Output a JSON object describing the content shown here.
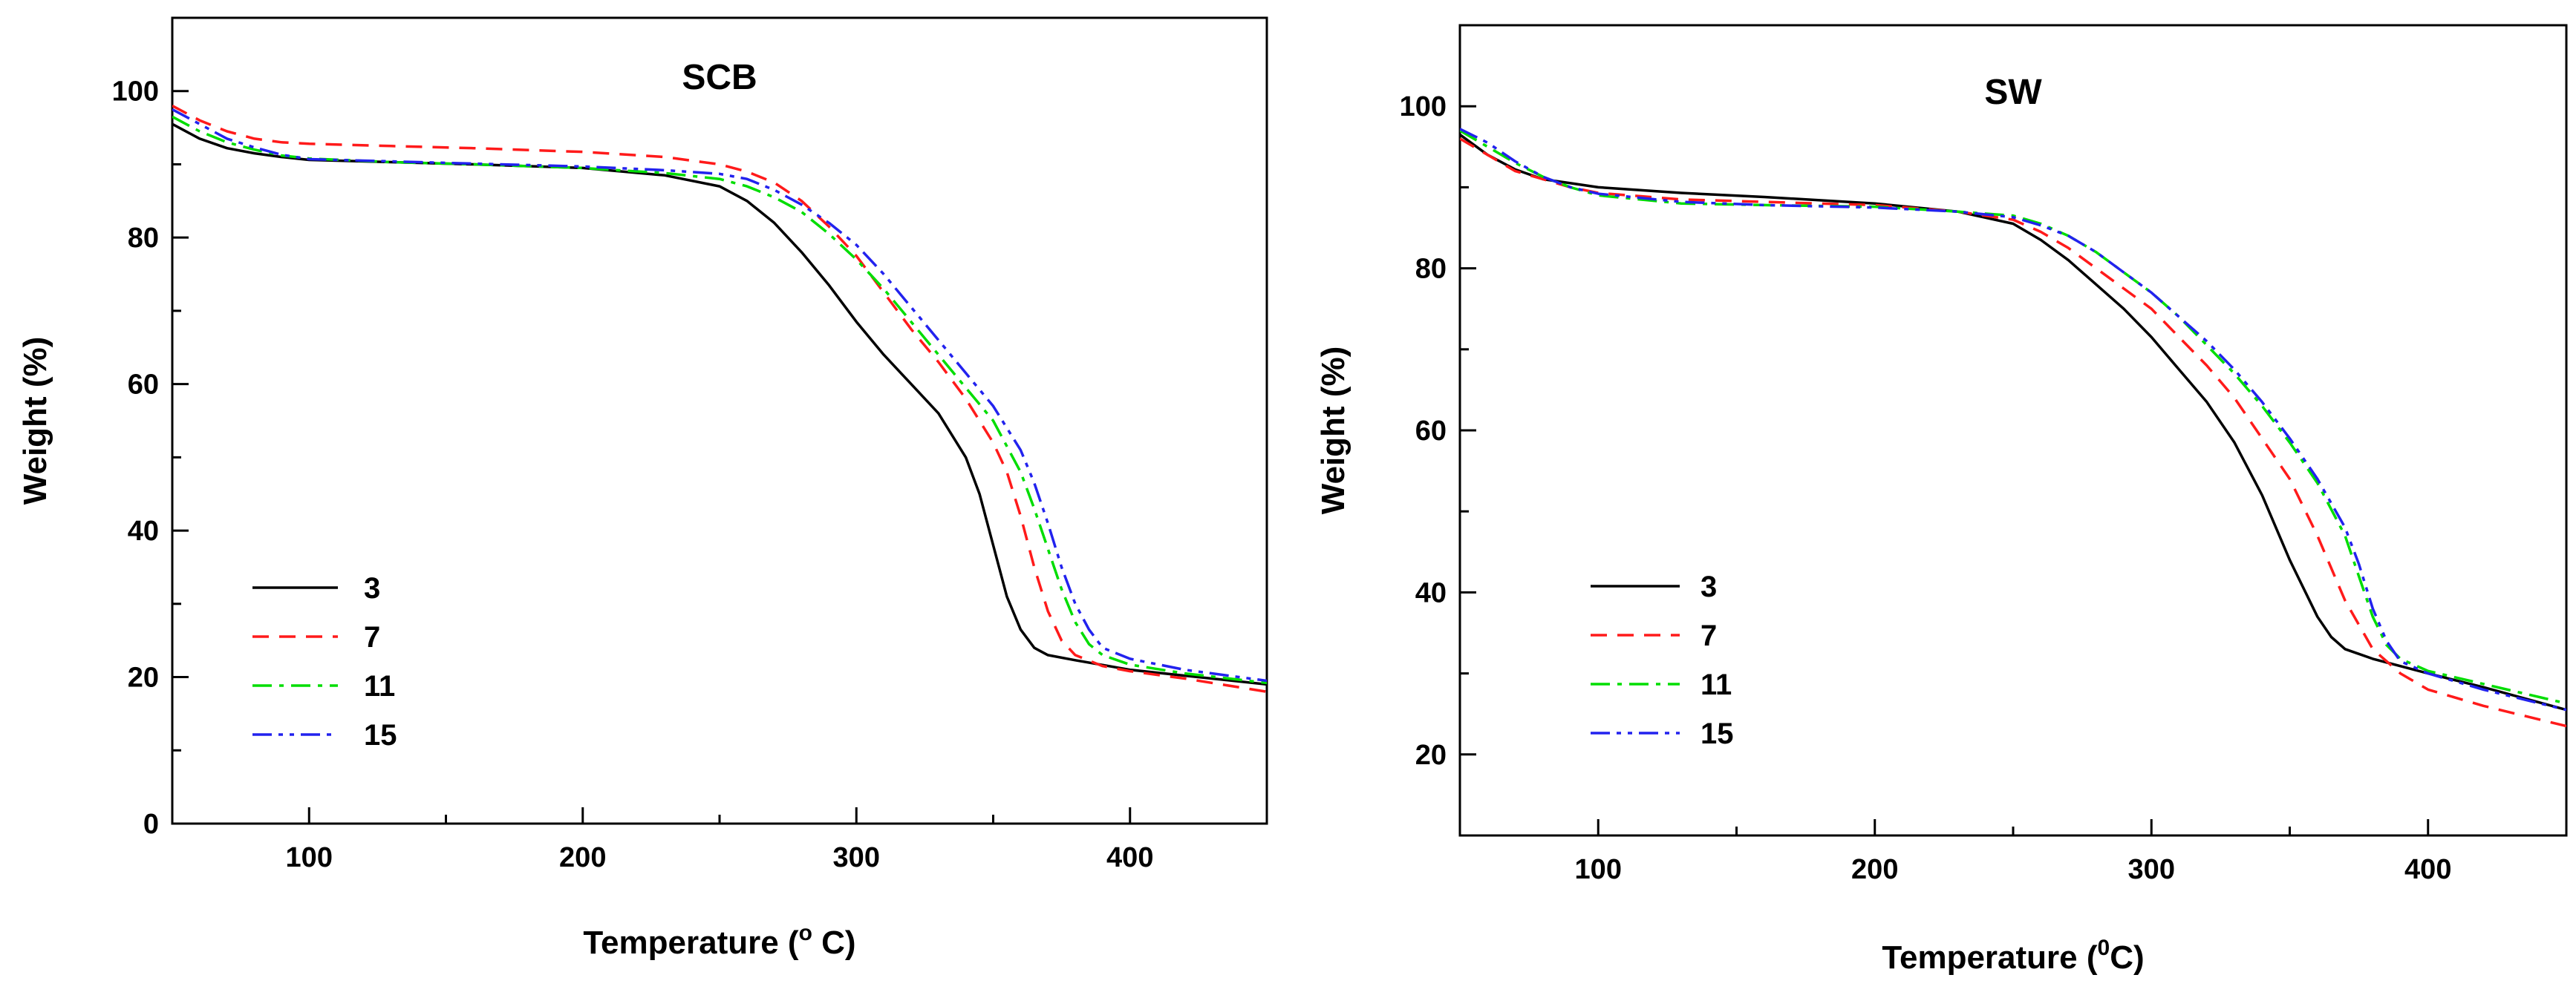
{
  "chart_data": [
    {
      "type": "line",
      "title": "SCB",
      "xlabel": "Temperature (",
      "xlabel_unit_sup": "o",
      "xlabel_unit": " C)",
      "ylabel": "Weight (%)",
      "xlim": [
        50,
        450
      ],
      "ylim": [
        0,
        110
      ],
      "xticks": [
        100,
        200,
        300,
        400
      ],
      "yticks": [
        0,
        20,
        40,
        60,
        80,
        100
      ],
      "grid": false,
      "legend_position": "bottom-left",
      "series": [
        {
          "name": "3",
          "color": "#000000",
          "dash": "solid",
          "x": [
            50,
            60,
            70,
            80,
            90,
            100,
            130,
            160,
            200,
            230,
            250,
            260,
            270,
            280,
            290,
            300,
            310,
            320,
            330,
            340,
            345,
            350,
            355,
            360,
            365,
            370,
            380,
            400,
            420,
            450
          ],
          "y": [
            95.5,
            93.5,
            92.2,
            91.5,
            91.0,
            90.6,
            90.3,
            90.0,
            89.5,
            88.5,
            87.0,
            85.0,
            82.0,
            78.0,
            73.5,
            68.5,
            64.0,
            60.0,
            56.0,
            50.0,
            45.0,
            38.0,
            31.0,
            26.5,
            24.0,
            23.0,
            22.3,
            21.0,
            20.2,
            19.0
          ]
        },
        {
          "name": "7",
          "color": "#ff1a1a",
          "dash": "dashed",
          "x": [
            50,
            60,
            70,
            80,
            90,
            100,
            130,
            160,
            200,
            230,
            250,
            260,
            270,
            280,
            290,
            300,
            310,
            320,
            330,
            340,
            350,
            355,
            360,
            365,
            370,
            375,
            380,
            390,
            400,
            420,
            450
          ],
          "y": [
            98.0,
            96.0,
            94.5,
            93.5,
            93.0,
            92.8,
            92.5,
            92.2,
            91.7,
            91.0,
            90.0,
            89.0,
            87.5,
            85.0,
            81.5,
            77.5,
            72.5,
            67.5,
            63.0,
            58.0,
            52.0,
            48.0,
            42.0,
            35.0,
            29.0,
            25.0,
            23.0,
            21.5,
            20.8,
            19.8,
            18.0
          ]
        },
        {
          "name": "11",
          "color": "#00dd00",
          "dash": "dashdot",
          "x": [
            50,
            60,
            70,
            80,
            90,
            100,
            130,
            160,
            200,
            230,
            250,
            260,
            270,
            280,
            290,
            300,
            310,
            320,
            330,
            340,
            350,
            360,
            365,
            370,
            375,
            380,
            385,
            390,
            400,
            420,
            450
          ],
          "y": [
            96.5,
            94.5,
            93.0,
            92.0,
            91.2,
            90.8,
            90.3,
            90.0,
            89.5,
            88.8,
            88.0,
            87.0,
            85.5,
            83.5,
            80.5,
            77.0,
            73.0,
            68.5,
            64.0,
            59.5,
            55.0,
            48.0,
            43.0,
            37.5,
            32.0,
            27.5,
            24.5,
            23.0,
            21.7,
            20.5,
            19.2
          ]
        },
        {
          "name": "15",
          "color": "#2222ee",
          "dash": "dashdotdot",
          "x": [
            50,
            60,
            70,
            80,
            90,
            100,
            130,
            160,
            200,
            230,
            250,
            260,
            270,
            280,
            290,
            300,
            310,
            320,
            330,
            340,
            350,
            360,
            365,
            370,
            375,
            380,
            385,
            390,
            400,
            420,
            450
          ],
          "y": [
            97.5,
            95.5,
            93.5,
            92.3,
            91.3,
            90.7,
            90.4,
            90.1,
            89.7,
            89.2,
            88.7,
            88.0,
            86.5,
            84.5,
            82.0,
            79.0,
            75.0,
            70.5,
            66.0,
            61.5,
            57.0,
            51.0,
            46.5,
            41.0,
            35.0,
            30.0,
            26.5,
            24.0,
            22.5,
            21.0,
            19.5
          ]
        }
      ]
    },
    {
      "type": "line",
      "title": "SW",
      "xlabel": "Temperature (",
      "xlabel_unit_sup": "0",
      "xlabel_unit": "C)",
      "ylabel": "Weight (%)",
      "xlim": [
        50,
        450
      ],
      "ylim": [
        10,
        110
      ],
      "xticks": [
        100,
        200,
        300,
        400
      ],
      "yticks": [
        20,
        40,
        60,
        80,
        100
      ],
      "grid": false,
      "legend_position": "bottom-left",
      "series": [
        {
          "name": "3",
          "color": "#000000",
          "dash": "solid",
          "x": [
            50,
            60,
            70,
            80,
            90,
            100,
            130,
            160,
            200,
            230,
            250,
            260,
            270,
            280,
            290,
            300,
            310,
            320,
            330,
            340,
            350,
            360,
            365,
            370,
            380,
            400,
            420,
            450
          ],
          "y": [
            96.5,
            94.0,
            92.2,
            91.0,
            90.5,
            90.0,
            89.3,
            88.8,
            88.0,
            87.0,
            85.5,
            83.5,
            81.0,
            78.0,
            75.0,
            71.5,
            67.5,
            63.5,
            58.5,
            52.0,
            44.0,
            37.0,
            34.5,
            33.0,
            31.8,
            30.0,
            28.3,
            25.5
          ]
        },
        {
          "name": "7",
          "color": "#ff1a1a",
          "dash": "dashed",
          "x": [
            50,
            60,
            70,
            80,
            90,
            100,
            130,
            160,
            200,
            230,
            250,
            260,
            270,
            280,
            290,
            300,
            310,
            320,
            330,
            340,
            350,
            360,
            370,
            380,
            390,
            400,
            420,
            450
          ],
          "y": [
            96.0,
            94.0,
            92.0,
            91.0,
            90.0,
            89.3,
            88.5,
            88.2,
            87.8,
            87.0,
            86.0,
            84.5,
            82.5,
            80.0,
            77.5,
            75.0,
            71.5,
            68.0,
            64.0,
            59.0,
            54.0,
            47.0,
            39.0,
            33.0,
            30.0,
            28.0,
            26.0,
            23.5
          ]
        },
        {
          "name": "11",
          "color": "#00dd00",
          "dash": "dashdot",
          "x": [
            50,
            60,
            70,
            80,
            90,
            100,
            130,
            160,
            200,
            230,
            250,
            260,
            270,
            280,
            290,
            300,
            310,
            320,
            330,
            340,
            350,
            360,
            370,
            375,
            380,
            385,
            390,
            400,
            420,
            450
          ],
          "y": [
            97.0,
            95.0,
            93.0,
            91.3,
            90.0,
            89.0,
            88.0,
            87.8,
            87.6,
            87.0,
            86.5,
            85.5,
            84.0,
            82.0,
            79.5,
            77.0,
            74.0,
            70.5,
            67.0,
            63.0,
            58.5,
            53.5,
            47.0,
            42.0,
            37.0,
            33.5,
            31.8,
            30.3,
            28.7,
            26.3
          ]
        },
        {
          "name": "15",
          "color": "#2222ee",
          "dash": "dashdotdot",
          "x": [
            50,
            60,
            70,
            80,
            90,
            100,
            130,
            160,
            200,
            230,
            250,
            260,
            270,
            280,
            290,
            300,
            310,
            320,
            330,
            340,
            350,
            360,
            370,
            375,
            380,
            385,
            390,
            400,
            420,
            450
          ],
          "y": [
            97.2,
            95.5,
            93.2,
            91.3,
            90.0,
            89.2,
            88.2,
            87.8,
            87.5,
            87.0,
            86.3,
            85.3,
            84.0,
            82.0,
            79.5,
            77.0,
            74.0,
            71.0,
            67.5,
            63.5,
            59.0,
            54.0,
            48.0,
            43.5,
            38.0,
            34.0,
            31.5,
            30.0,
            28.0,
            25.5
          ]
        }
      ]
    }
  ]
}
